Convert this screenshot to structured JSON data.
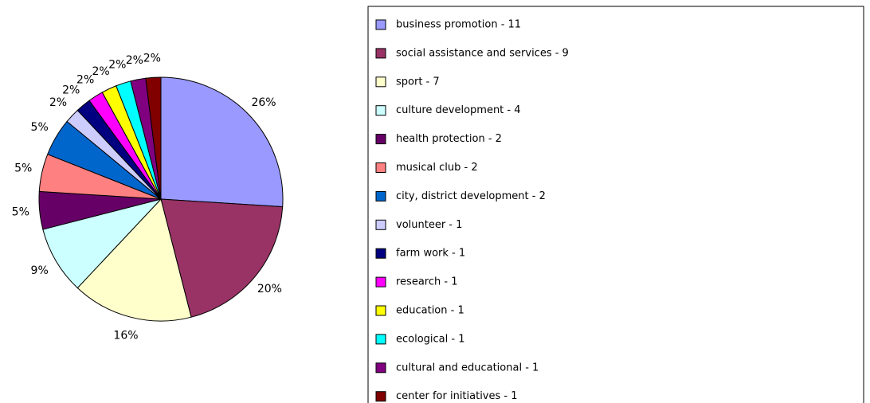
{
  "chart_data": {
    "type": "pie",
    "categories": [
      "business promotion - 11",
      "social assistance and services - 9",
      "sport - 7",
      "culture development - 4",
      "health protection - 2",
      "musical club - 2",
      "city, district development - 2",
      "volunteer - 1",
      "farm work - 1",
      "research - 1",
      "education - 1",
      "ecological - 1",
      "cultural and educational - 1",
      "center for initiatives - 1"
    ],
    "values": [
      26,
      20,
      16,
      9,
      5,
      5,
      5,
      2,
      2,
      2,
      2,
      2,
      2,
      2
    ],
    "value_labels": [
      "26%",
      "20%",
      "16%",
      "9%",
      "5%",
      "5%",
      "5%",
      "2%",
      "2%",
      "2%",
      "2%",
      "2%",
      "2%",
      "2%"
    ],
    "colors": [
      "#9999ff",
      "#993366",
      "#ffffcc",
      "#ccffff",
      "#660066",
      "#ff8080",
      "#0066cc",
      "#ccccff",
      "#000080",
      "#ff00ff",
      "#ffff00",
      "#00ffff",
      "#800080",
      "#800000"
    ],
    "legend": "right"
  }
}
